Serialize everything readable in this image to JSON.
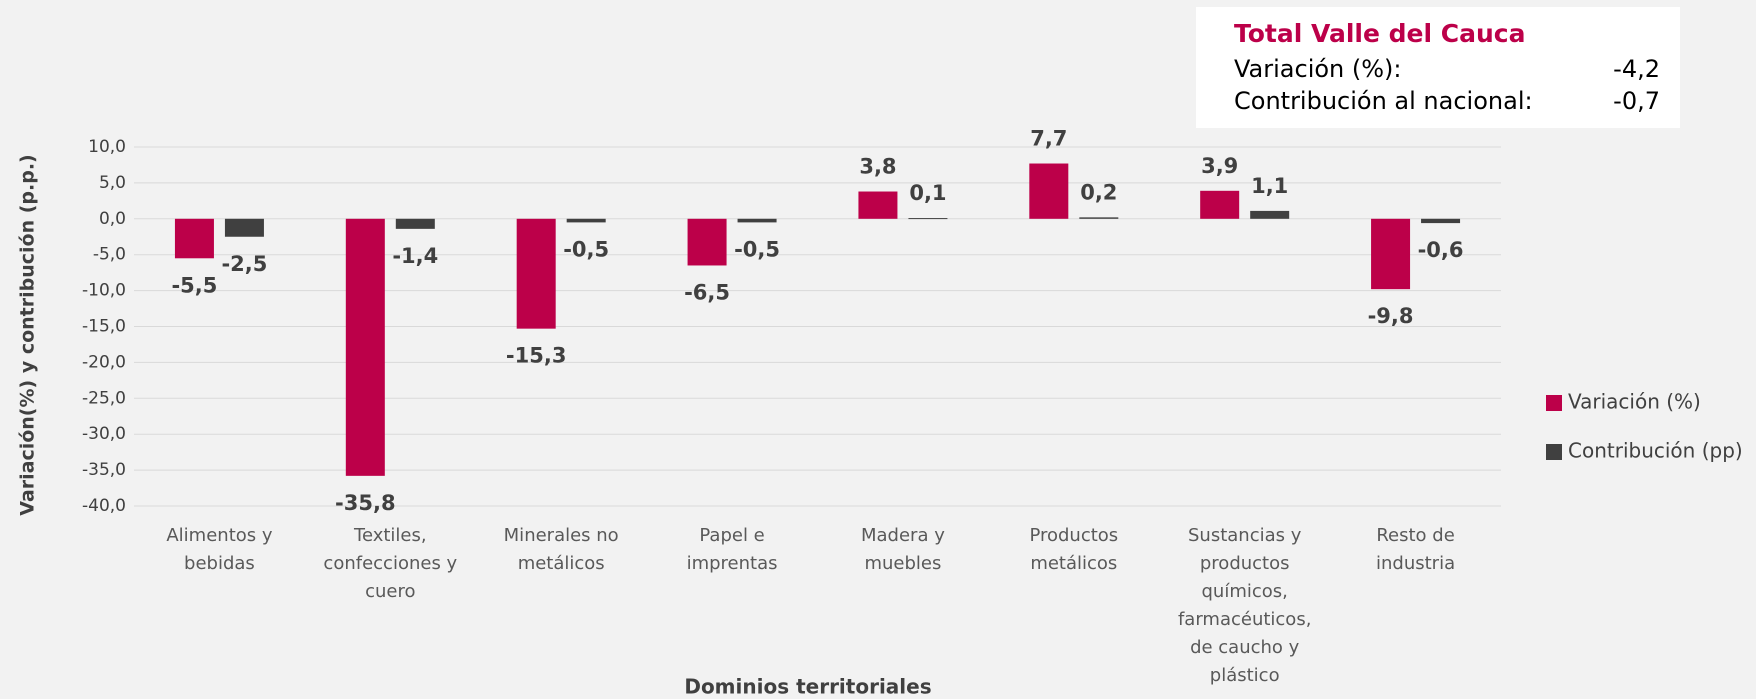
{
  "chart_data": {
    "type": "bar",
    "x_label": "Dominios territoriales",
    "y_label": "Variación(%) y contribución (p.p.)",
    "categories": [
      "Alimentos y bebidas",
      "Textiles, confecciones y cuero",
      "Minerales no metálicos",
      "Papel e imprentas",
      "Madera y muebles",
      "Productos metálicos",
      "Sustancias y productos químicos, farmacéuticos, de caucho y plástico",
      "Resto de industria"
    ],
    "series": [
      {
        "name": "Variación (%)",
        "color": "#bc0049",
        "values": [
          -5.5,
          -35.8,
          -15.3,
          -6.5,
          3.8,
          7.7,
          3.9,
          -9.8
        ],
        "value_labels": [
          "-5,5",
          "-35,8",
          "-15,3",
          "-6,5",
          "3,8",
          "7,7",
          "3,9",
          "-9,8"
        ]
      },
      {
        "name": "Contribución (pp)",
        "color": "#404040",
        "values": [
          -2.5,
          -1.4,
          -0.5,
          -0.5,
          0.1,
          0.2,
          1.1,
          -0.6
        ],
        "value_labels": [
          "-2,5",
          "-1,4",
          "-0,5",
          "-0,5",
          "0,1",
          "0,2",
          "1,1",
          "-0,6"
        ]
      }
    ],
    "ylim": [
      -40,
      10
    ],
    "yticks": [
      {
        "value": -40,
        "label": "-40,0"
      },
      {
        "value": -35,
        "label": "-35,0"
      },
      {
        "value": -30,
        "label": "-30,0"
      },
      {
        "value": -25,
        "label": "-25,0"
      },
      {
        "value": -20,
        "label": "-20,0"
      },
      {
        "value": -15,
        "label": "-15,0"
      },
      {
        "value": -10,
        "label": "-10,0"
      },
      {
        "value": -5,
        "label": "-5,0"
      },
      {
        "value": 0,
        "label": "0,0"
      },
      {
        "value": 5,
        "label": "5,0"
      },
      {
        "value": 10,
        "label": "10,0"
      }
    ],
    "grid": true,
    "legend": "right",
    "info_box": {
      "title": "Total Valle del Cauca",
      "rows": [
        [
          "Variación (%):",
          "-4,2"
        ],
        [
          "Contribución al nacional:",
          "-0,7"
        ]
      ]
    }
  }
}
